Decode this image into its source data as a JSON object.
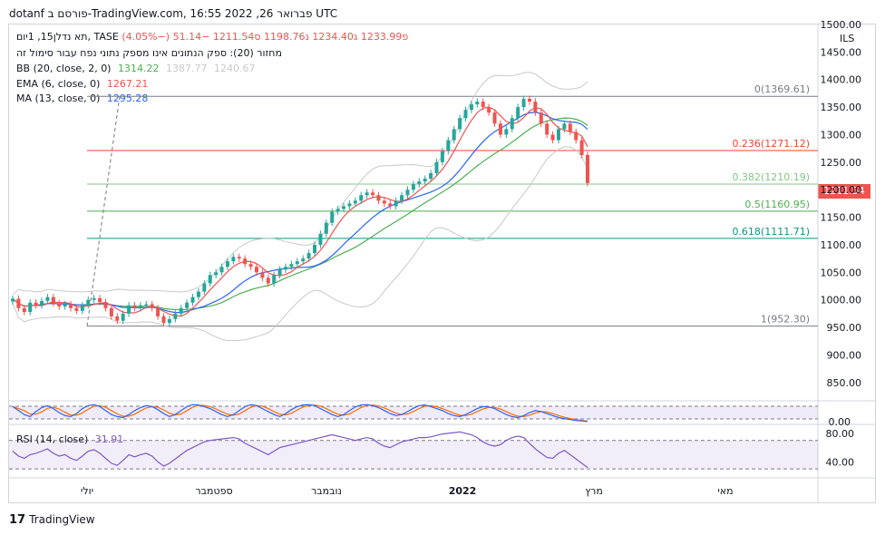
{
  "header": {
    "text": "dotanf פורסם ב-TradingView.com, 16:55 פברואר 26, 2022 UTC"
  },
  "legend": {
    "main": {
      "symbol": "תא נדלן15, 1יום, TASE",
      "o_label": "פ",
      "o": "1233.99",
      "h_label": "ג",
      "h": "1234.40",
      "l_label": "נ",
      "l": "1198.76",
      "c_label": "ס",
      "c": "1211.54",
      "change": "−51.14 (−4.05%)"
    },
    "volume_note": "מחזור (20): ספק הנתונים אינו מספק נתוני נפח עבור סימול זה",
    "bb": {
      "label": "BB (20, close, 2, 0)",
      "v1": "1314.22",
      "v2": "1387.77",
      "v3": "1240.67"
    },
    "ema": {
      "label": "EMA (6, close, 0)",
      "value": "1267.21"
    },
    "ma": {
      "label": "MA (13, close, 0)",
      "value": "1295.28"
    },
    "rsi": {
      "label": "RSI (14, close)",
      "value": "31.91"
    }
  },
  "currency": "ILS",
  "last_price": "1211.54",
  "footer": {
    "logo": "𝟭𝟳",
    "brand": "TradingView"
  },
  "colors": {
    "up": "#26a69a",
    "down": "#ef5350",
    "bb": "#c8c8c8",
    "ema": "#2962ff",
    "ma": "#4caf50",
    "rsi": "#7e57c2",
    "stoch_k": "#2962ff",
    "stoch_d": "#ff6d00"
  },
  "chart_data": {
    "type": "candlestick",
    "price_axis": {
      "ylim": [
        820,
        1500
      ],
      "ticks": [
        "1500.00",
        "1450.00",
        "1400.00",
        "1350.00",
        "1300.00",
        "1250.00",
        "1200.00",
        "1150.00",
        "1100.00",
        "1050.00",
        "1000.00",
        "950.00",
        "900.00",
        "850.00"
      ]
    },
    "time_axis": {
      "labels": [
        "יולי",
        "ספטמבר",
        "נובמבר",
        "2022",
        "מרץ",
        "מאי"
      ]
    },
    "fibonacci": [
      {
        "label": "0(1369.61)",
        "level": 1369.61,
        "color": "#787b86"
      },
      {
        "label": "0.236(1271.12)",
        "level": 1271.12,
        "color": "#f44336"
      },
      {
        "label": "0.382(1210.19)",
        "level": 1210.19,
        "color": "#81c784"
      },
      {
        "label": "0.5(1160.95)",
        "level": 1160.95,
        "color": "#4caf50"
      },
      {
        "label": "0.618(1111.71)",
        "level": 1111.71,
        "color": "#089981"
      },
      {
        "label": "1(952.30)",
        "level": 952.3,
        "color": "#787b86"
      }
    ],
    "close_series": [
      1002,
      985,
      978,
      995,
      990,
      998,
      1005,
      994,
      988,
      992,
      985,
      980,
      990,
      1000,
      1003,
      996,
      985,
      970,
      962,
      975,
      990,
      985,
      990,
      992,
      985,
      970,
      958,
      965,
      975,
      985,
      995,
      1005,
      1015,
      1030,
      1045,
      1050,
      1060,
      1070,
      1078,
      1075,
      1065,
      1060,
      1050,
      1040,
      1030,
      1045,
      1055,
      1060,
      1065,
      1070,
      1075,
      1085,
      1100,
      1120,
      1140,
      1160,
      1165,
      1170,
      1175,
      1180,
      1190,
      1195,
      1190,
      1180,
      1175,
      1170,
      1180,
      1190,
      1200,
      1210,
      1215,
      1220,
      1230,
      1250,
      1270,
      1290,
      1310,
      1330,
      1345,
      1355,
      1360,
      1350,
      1340,
      1320,
      1300,
      1310,
      1330,
      1350,
      1365,
      1360,
      1340,
      1320,
      1300,
      1290,
      1310,
      1320,
      1305,
      1290,
      1263,
      1212
    ],
    "oscillator": {
      "ylim": [
        0,
        100
      ],
      "tick": "0.00",
      "k": [
        80,
        60,
        40,
        30,
        55,
        75,
        85,
        70,
        50,
        35,
        30,
        45,
        70,
        85,
        90,
        80,
        60,
        40,
        30,
        25,
        40,
        60,
        75,
        85,
        80,
        65,
        45,
        30,
        40,
        60,
        80,
        90,
        88,
        80,
        70,
        55,
        40,
        30,
        40,
        60,
        80,
        90,
        85,
        70,
        55,
        40,
        30,
        45,
        65,
        80,
        88,
        90,
        85,
        70,
        55,
        40,
        30,
        40,
        60,
        78,
        88,
        90,
        85,
        75,
        60,
        45,
        35,
        40,
        55,
        72,
        85,
        88,
        80,
        70,
        60,
        45,
        35,
        30,
        40,
        55,
        70,
        80,
        78,
        70,
        55,
        40,
        30,
        25,
        35,
        50,
        60,
        55,
        45,
        35,
        25,
        20,
        15,
        10,
        8,
        5
      ]
    },
    "rsi": {
      "ylim": [
        20,
        90
      ],
      "ticks": [
        "80.00",
        "40.00"
      ],
      "values": [
        55,
        48,
        45,
        50,
        52,
        55,
        58,
        52,
        48,
        50,
        45,
        42,
        48,
        55,
        57,
        52,
        45,
        38,
        35,
        42,
        50,
        47,
        50,
        52,
        48,
        40,
        34,
        38,
        44,
        50,
        56,
        60,
        64,
        68,
        70,
        71,
        72,
        73,
        74,
        72,
        66,
        62,
        58,
        54,
        50,
        55,
        60,
        62,
        64,
        66,
        68,
        70,
        72,
        74,
        76,
        78,
        76,
        74,
        72,
        70,
        72,
        74,
        72,
        66,
        62,
        60,
        64,
        68,
        70,
        72,
        74,
        74,
        75,
        77,
        79,
        80,
        81,
        82,
        80,
        78,
        74,
        68,
        64,
        62,
        64,
        70,
        74,
        76,
        74,
        66,
        58,
        52,
        46,
        45,
        52,
        56,
        50,
        44,
        38,
        32
      ]
    }
  }
}
